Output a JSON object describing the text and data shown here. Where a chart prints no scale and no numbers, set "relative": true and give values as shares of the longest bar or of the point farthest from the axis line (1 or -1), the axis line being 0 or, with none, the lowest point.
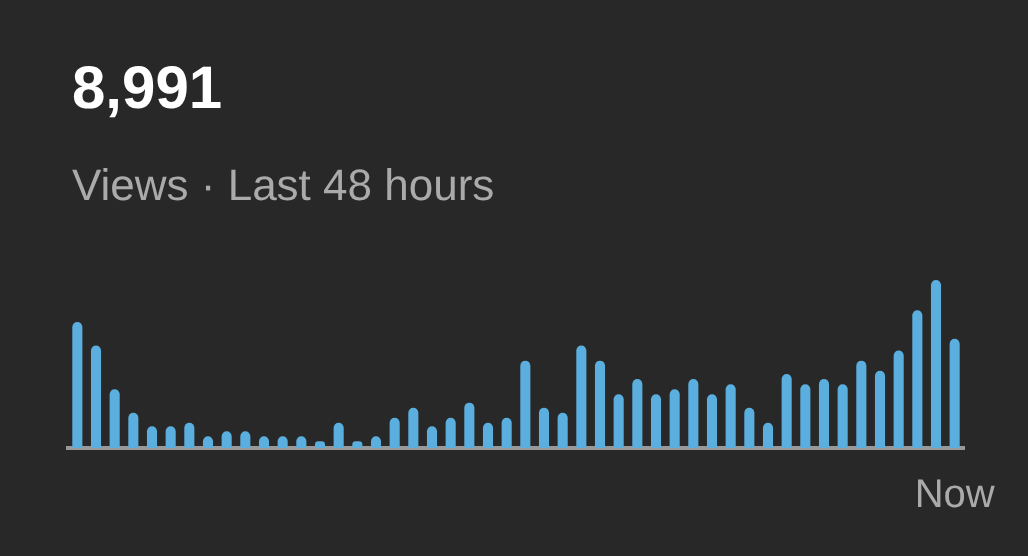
{
  "chart_data": {
    "type": "bar",
    "title": "8,991",
    "subtitle": "Views · Last 48 hours",
    "relative": true,
    "color": "#5aafdf",
    "grid": false,
    "legend": false,
    "categories": [
      null,
      null,
      null,
      null,
      null,
      null,
      null,
      null,
      null,
      null,
      null,
      null,
      null,
      null,
      null,
      null,
      null,
      null,
      null,
      null,
      null,
      null,
      null,
      null,
      null,
      null,
      null,
      null,
      null,
      null,
      null,
      null,
      null,
      null,
      null,
      null,
      null,
      null,
      null,
      null,
      null,
      null,
      null,
      null,
      null,
      null,
      null,
      "Now"
    ],
    "values": [
      0.75,
      0.61,
      0.35,
      0.21,
      0.13,
      0.13,
      0.15,
      0.07,
      0.1,
      0.1,
      0.07,
      0.07,
      0.07,
      0.04,
      0.15,
      0.04,
      0.07,
      0.18,
      0.24,
      0.13,
      0.18,
      0.27,
      0.15,
      0.18,
      0.52,
      0.24,
      0.21,
      0.61,
      0.52,
      0.32,
      0.41,
      0.32,
      0.35,
      0.41,
      0.32,
      0.38,
      0.24,
      0.15,
      0.44,
      0.38,
      0.41,
      0.38,
      0.52,
      0.46,
      0.58,
      0.82,
      1,
      0.65
    ]
  }
}
